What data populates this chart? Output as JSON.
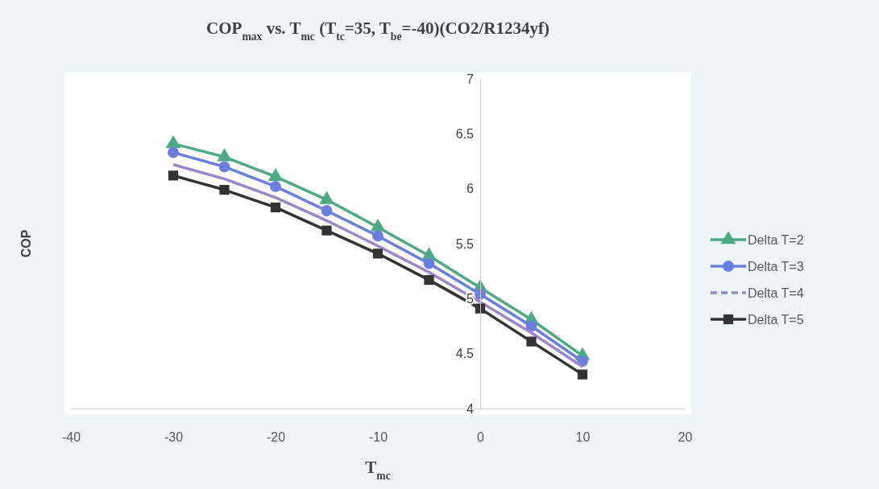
{
  "chart_data": {
    "type": "line",
    "title": "COP$_{max}$ vs. T$_{mc}$ (T$_{tc}$=35, T$_{be}$=-40)(CO2/R1234yf)",
    "xlabel": "T$_{mc}$",
    "ylabel": "COP",
    "x": [
      -30,
      -25,
      -20,
      -15,
      -10,
      -5,
      0,
      5,
      10
    ],
    "series": [
      {
        "name": "Delta T=2",
        "color": "#4daa84",
        "marker": "triangle",
        "values": [
          6.41,
          6.29,
          6.11,
          5.9,
          5.65,
          5.39,
          5.1,
          4.81,
          4.48
        ]
      },
      {
        "name": "Delta T=3",
        "color": "#6b7ee0",
        "marker": "circle",
        "values": [
          6.33,
          6.2,
          6.02,
          5.8,
          5.57,
          5.32,
          5.04,
          4.75,
          4.43
        ]
      },
      {
        "name": "Delta T=4",
        "color": "#9a86c8",
        "marker": "none",
        "values": [
          6.22,
          6.09,
          5.92,
          5.71,
          5.48,
          5.24,
          4.97,
          4.69,
          4.38
        ]
      },
      {
        "name": "Delta T=5",
        "color": "#333333",
        "marker": "square",
        "values": [
          6.12,
          5.99,
          5.83,
          5.62,
          5.41,
          5.17,
          4.91,
          4.61,
          4.31
        ]
      }
    ],
    "xlim": [
      -40,
      20
    ],
    "xticks": [
      -40,
      -30,
      -20,
      -10,
      0,
      10,
      20
    ],
    "ylim": [
      4,
      7
    ],
    "yticks": [
      4,
      4.5,
      5,
      5.5,
      6,
      6.5,
      7
    ],
    "grid": false,
    "legend": "right"
  }
}
